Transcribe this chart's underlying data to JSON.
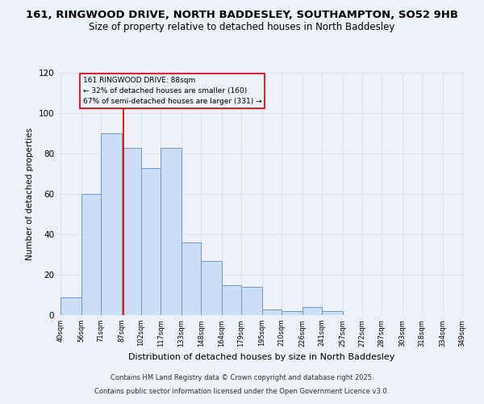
{
  "title1": "161, RINGWOOD DRIVE, NORTH BADDESLEY, SOUTHAMPTON, SO52 9HB",
  "title2": "Size of property relative to detached houses in North Baddesley",
  "xlabel": "Distribution of detached houses by size in North Baddesley",
  "ylabel": "Number of detached properties",
  "bar_edges": [
    40,
    56,
    71,
    87,
    102,
    117,
    133,
    148,
    164,
    179,
    195,
    210,
    226,
    241,
    257,
    272,
    287,
    303,
    318,
    334,
    349
  ],
  "bar_heights": [
    9,
    60,
    90,
    83,
    73,
    83,
    36,
    27,
    15,
    14,
    3,
    2,
    4,
    2,
    0,
    0,
    0,
    0,
    0,
    0
  ],
  "tick_labels": [
    "40sqm",
    "56sqm",
    "71sqm",
    "87sqm",
    "102sqm",
    "117sqm",
    "133sqm",
    "148sqm",
    "164sqm",
    "179sqm",
    "195sqm",
    "210sqm",
    "226sqm",
    "241sqm",
    "257sqm",
    "272sqm",
    "287sqm",
    "303sqm",
    "318sqm",
    "334sqm",
    "349sqm"
  ],
  "bar_facecolor": "#ccddf5",
  "bar_edgecolor": "#6699cc",
  "vline_x": 88,
  "vline_color": "#cc0000",
  "annotation_title": "161 RINGWOOD DRIVE: 88sqm",
  "annotation_line2": "← 32% of detached houses are smaller (160)",
  "annotation_line3": "67% of semi-detached houses are larger (331) →",
  "annotation_box_edgecolor": "#cc0000",
  "ylim": [
    0,
    120
  ],
  "footnote1": "Contains HM Land Registry data © Crown copyright and database right 2025.",
  "footnote2": "Contains public sector information licensed under the Open Government Licence v3.0.",
  "background_color": "#eef0fa",
  "grid_color": "#dde0ee",
  "title_fontsize": 9.5,
  "subtitle_fontsize": 8.5
}
